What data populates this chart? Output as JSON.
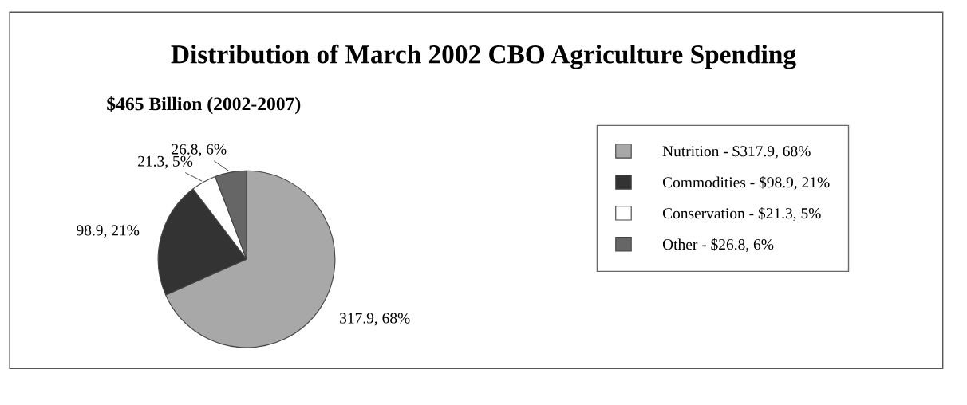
{
  "chart_data": {
    "type": "pie",
    "title": "Distribution of March 2002 CBO Agriculture Spending",
    "subtitle": "$465 Billion (2002-2007)",
    "categories": [
      "Nutrition - $317.9, 68%",
      "Commodities - $98.9, 21%",
      "Conservation - $21.3, 5%",
      "Other - $26.8, 6%"
    ],
    "values": [
      317.9,
      98.9,
      21.3,
      26.8
    ],
    "value_labels": [
      "317.9, 68%",
      "98.9, 21%",
      "21.3, 5%",
      "26.8, 6%"
    ],
    "colors": [
      "#a8a8a8",
      "#333333",
      "#ffffff",
      "#666666"
    ],
    "legend": "right"
  }
}
